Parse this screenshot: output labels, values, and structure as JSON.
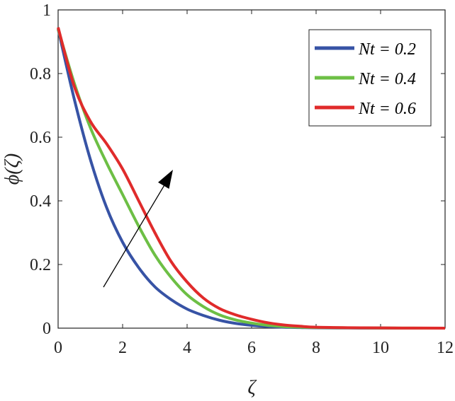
{
  "chart_data": {
    "type": "line",
    "xlabel": "ζ",
    "ylabel": "ϕ(ζ)",
    "xlim": [
      0,
      12
    ],
    "ylim": [
      0,
      1
    ],
    "x_ticks": [
      0,
      2,
      4,
      6,
      8,
      10,
      12
    ],
    "y_ticks": [
      0,
      0.2,
      0.4,
      0.6,
      0.8,
      1
    ],
    "x_tick_labels": [
      "0",
      "2",
      "4",
      "6",
      "8",
      "10",
      "12"
    ],
    "y_tick_labels": [
      "0",
      "0.2",
      "0.4",
      "0.6",
      "0.8",
      "1"
    ],
    "grid": false,
    "legend_position": "top-right",
    "annotation": "arrow pointing up-right indicating increasing Nt",
    "series": [
      {
        "name": "Nt = 0.2",
        "color": "#3753a5",
        "x": [
          0,
          0.5,
          1,
          1.5,
          2,
          2.5,
          3,
          3.5,
          4,
          4.5,
          5,
          5.5,
          6,
          6.5,
          7,
          7.5,
          8,
          9,
          10,
          11,
          12
        ],
        "y": [
          0.94,
          0.72,
          0.53,
          0.38,
          0.27,
          0.19,
          0.13,
          0.09,
          0.06,
          0.04,
          0.025,
          0.015,
          0.009,
          0.005,
          0.003,
          0.002,
          0.001,
          0.0005,
          0.0002,
          0.0001,
          0.0
        ]
      },
      {
        "name": "Nt = 0.4",
        "color": "#6dbf45",
        "x": [
          0,
          0.5,
          1,
          1.5,
          2,
          2.5,
          3,
          3.5,
          4,
          4.5,
          5,
          5.5,
          6,
          6.5,
          7,
          7.5,
          8,
          9,
          10,
          11,
          12
        ],
        "y": [
          0.94,
          0.77,
          0.63,
          0.52,
          0.42,
          0.32,
          0.23,
          0.16,
          0.105,
          0.068,
          0.042,
          0.026,
          0.016,
          0.009,
          0.005,
          0.003,
          0.002,
          0.001,
          0.0005,
          0.0002,
          0.0
        ]
      },
      {
        "name": "Nt = 0.6",
        "color": "#e02b2b",
        "x": [
          0,
          0.5,
          1,
          1.5,
          2,
          2.5,
          3,
          3.5,
          4,
          4.5,
          5,
          5.5,
          6,
          6.5,
          7,
          7.5,
          8,
          9,
          10,
          11,
          12
        ],
        "y": [
          0.945,
          0.76,
          0.65,
          0.58,
          0.5,
          0.4,
          0.3,
          0.21,
          0.145,
          0.095,
          0.062,
          0.042,
          0.028,
          0.017,
          0.01,
          0.006,
          0.003,
          0.0015,
          0.0007,
          0.0003,
          0.0
        ]
      }
    ]
  }
}
